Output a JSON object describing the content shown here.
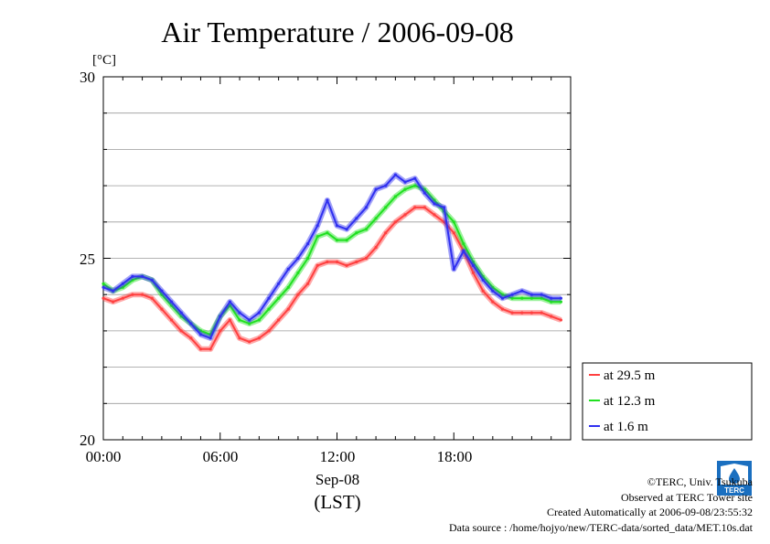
{
  "chart_data": {
    "type": "line",
    "title": "Air Temperature / 2006-09-08",
    "ylabel": "[°C]",
    "xlabel_date": "Sep-08",
    "xlabel_tz": "(LST)",
    "xlim_hours": [
      0,
      24
    ],
    "ylim": [
      20,
      30
    ],
    "y_ticks": [
      "20",
      "25",
      "30"
    ],
    "x_ticks": [
      "00:00",
      "06:00",
      "12:00",
      "18:00"
    ],
    "grid": true,
    "legend_position": "bottom-right, outside plot",
    "series": [
      {
        "name": "at 29.5 m",
        "color": "#ff4040",
        "x": [
          0,
          0.5,
          1,
          1.5,
          2,
          2.5,
          3,
          3.5,
          4,
          4.5,
          5,
          5.5,
          6,
          6.5,
          7,
          7.5,
          8,
          8.5,
          9,
          9.5,
          10,
          10.5,
          11,
          11.5,
          12,
          12.5,
          13,
          13.5,
          14,
          14.5,
          15,
          15.5,
          16,
          16.5,
          17,
          17.5,
          18,
          18.5,
          19,
          19.5,
          20,
          20.5,
          21,
          21.5,
          22,
          22.5,
          23,
          23.5
        ],
        "values": [
          23.9,
          23.8,
          23.9,
          24.0,
          24.0,
          23.9,
          23.6,
          23.3,
          23.0,
          22.8,
          22.5,
          22.5,
          23.0,
          23.3,
          22.8,
          22.7,
          22.8,
          23.0,
          23.3,
          23.6,
          24.0,
          24.3,
          24.8,
          24.9,
          24.9,
          24.8,
          24.9,
          25.0,
          25.3,
          25.7,
          26.0,
          26.2,
          26.4,
          26.4,
          26.2,
          26.0,
          25.7,
          25.2,
          24.6,
          24.1,
          23.8,
          23.6,
          23.5,
          23.5,
          23.5,
          23.5,
          23.4,
          23.3
        ]
      },
      {
        "name": "at 12.3 m",
        "color": "#20e020",
        "x": [
          0,
          0.5,
          1,
          1.5,
          2,
          2.5,
          3,
          3.5,
          4,
          4.5,
          5,
          5.5,
          6,
          6.5,
          7,
          7.5,
          8,
          8.5,
          9,
          9.5,
          10,
          10.5,
          11,
          11.5,
          12,
          12.5,
          13,
          13.5,
          14,
          14.5,
          15,
          15.5,
          16,
          16.5,
          17,
          17.5,
          18,
          18.5,
          19,
          19.5,
          20,
          20.5,
          21,
          21.5,
          22,
          22.5,
          23,
          23.5
        ],
        "values": [
          24.3,
          24.1,
          24.2,
          24.4,
          24.5,
          24.4,
          24.0,
          23.7,
          23.4,
          23.2,
          23.0,
          22.9,
          23.4,
          23.7,
          23.3,
          23.2,
          23.3,
          23.6,
          23.9,
          24.2,
          24.6,
          25.0,
          25.6,
          25.7,
          25.5,
          25.5,
          25.7,
          25.8,
          26.1,
          26.4,
          26.7,
          26.9,
          27.0,
          26.9,
          26.6,
          26.3,
          26.0,
          25.4,
          24.9,
          24.5,
          24.2,
          24.0,
          23.9,
          23.9,
          23.9,
          23.9,
          23.8,
          23.8
        ]
      },
      {
        "name": "at 1.6 m",
        "color": "#3030f0",
        "x": [
          0,
          0.5,
          1,
          1.5,
          2,
          2.5,
          3,
          3.5,
          4,
          4.5,
          5,
          5.5,
          6,
          6.5,
          7,
          7.5,
          8,
          8.5,
          9,
          9.5,
          10,
          10.5,
          11,
          11.5,
          12,
          12.5,
          13,
          13.5,
          14,
          14.5,
          15,
          15.5,
          16,
          16.5,
          17,
          17.5,
          18,
          18.5,
          19,
          19.5,
          20,
          20.5,
          21,
          21.5,
          22,
          22.5,
          23,
          23.5
        ],
        "values": [
          24.2,
          24.1,
          24.3,
          24.5,
          24.5,
          24.4,
          24.1,
          23.8,
          23.5,
          23.2,
          22.9,
          22.8,
          23.4,
          23.8,
          23.5,
          23.3,
          23.5,
          23.9,
          24.3,
          24.7,
          25.0,
          25.4,
          25.9,
          26.6,
          25.9,
          25.8,
          26.1,
          26.4,
          26.9,
          27.0,
          27.3,
          27.1,
          27.2,
          26.8,
          26.5,
          26.4,
          24.7,
          25.2,
          24.8,
          24.4,
          24.1,
          23.9,
          24.0,
          24.1,
          24.0,
          24.0,
          23.9,
          23.9
        ]
      }
    ]
  },
  "footer": {
    "copyright": "©TERC, Univ. Tsukuba",
    "observed": "Observed at TERC Tower site",
    "created": "Created Automatically at 2006-09-08/23:55:32",
    "source": "Data source : /home/hojyo/new/TERC-data/sorted_data/MET.10s.dat"
  },
  "logo": {
    "text": "TERC"
  }
}
